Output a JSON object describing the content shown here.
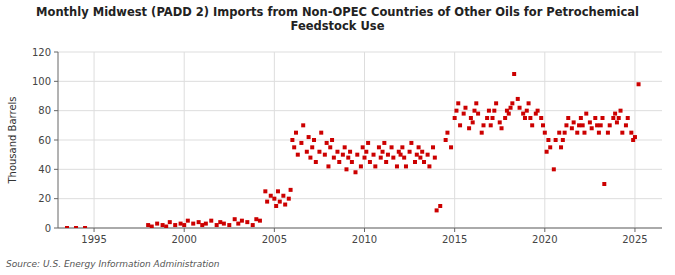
{
  "chart_data": {
    "type": "scatter",
    "title": "Monthly Midwest (PADD 2) Imports from Non-OPEC Countries of Other Oils for Petrochemical\nFeedstock Use",
    "ylabel": "Thousand Barrels",
    "source": "Source: U.S. Energy Information Administration",
    "color": "#cc0000",
    "marker": "square",
    "grid": true,
    "xlim": [
      1993.0,
      2026.5
    ],
    "ylim": [
      0,
      120
    ],
    "xticks": [
      1995,
      2000,
      2005,
      2010,
      2015,
      2020,
      2025
    ],
    "yticks": [
      0,
      20,
      40,
      60,
      80,
      100,
      120
    ],
    "x": [
      1993.5,
      1994.0,
      1994.5,
      1998.0,
      1998.2,
      1998.5,
      1998.8,
      1999.0,
      1999.2,
      1999.5,
      1999.8,
      2000.0,
      2000.2,
      2000.5,
      2000.8,
      2001.0,
      2001.2,
      2001.5,
      2001.8,
      2002.0,
      2002.2,
      2002.5,
      2002.8,
      2003.0,
      2003.2,
      2003.5,
      2003.8,
      2004.0,
      2004.2,
      2004.5,
      2004.6,
      2004.8,
      2005.0,
      2005.1,
      2005.2,
      2005.3,
      2005.5,
      2005.6,
      2005.8,
      2005.9,
      2006.0,
      2006.1,
      2006.2,
      2006.3,
      2006.5,
      2006.6,
      2006.8,
      2006.9,
      2007.0,
      2007.1,
      2007.2,
      2007.3,
      2007.5,
      2007.6,
      2007.8,
      2007.9,
      2008.0,
      2008.1,
      2008.2,
      2008.3,
      2008.5,
      2008.6,
      2008.8,
      2008.9,
      2009.0,
      2009.1,
      2009.2,
      2009.3,
      2009.5,
      2009.6,
      2009.8,
      2009.9,
      2010.0,
      2010.1,
      2010.2,
      2010.3,
      2010.5,
      2010.6,
      2010.8,
      2010.9,
      2011.0,
      2011.1,
      2011.2,
      2011.3,
      2011.5,
      2011.6,
      2011.8,
      2011.9,
      2012.0,
      2012.1,
      2012.2,
      2012.3,
      2012.5,
      2012.6,
      2012.8,
      2012.9,
      2013.0,
      2013.1,
      2013.2,
      2013.3,
      2013.5,
      2013.6,
      2013.8,
      2013.9,
      2014.0,
      2014.2,
      2014.5,
      2014.6,
      2014.8,
      2015.0,
      2015.1,
      2015.2,
      2015.3,
      2015.5,
      2015.6,
      2015.8,
      2015.9,
      2016.0,
      2016.1,
      2016.2,
      2016.3,
      2016.5,
      2016.6,
      2016.8,
      2016.9,
      2017.0,
      2017.1,
      2017.2,
      2017.3,
      2017.5,
      2017.6,
      2017.8,
      2017.9,
      2018.0,
      2018.1,
      2018.2,
      2018.3,
      2018.5,
      2018.6,
      2018.8,
      2018.9,
      2019.0,
      2019.1,
      2019.2,
      2019.3,
      2019.5,
      2019.6,
      2019.8,
      2019.9,
      2020.0,
      2020.1,
      2020.2,
      2020.3,
      2020.5,
      2020.6,
      2020.8,
      2020.9,
      2021.0,
      2021.1,
      2021.2,
      2021.3,
      2021.5,
      2021.6,
      2021.8,
      2021.9,
      2022.0,
      2022.1,
      2022.2,
      2022.3,
      2022.5,
      2022.6,
      2022.8,
      2022.9,
      2023.0,
      2023.1,
      2023.2,
      2023.3,
      2023.5,
      2023.6,
      2023.8,
      2023.9,
      2024.0,
      2024.1,
      2024.2,
      2024.3,
      2024.5,
      2024.6,
      2024.8,
      2024.9,
      2025.0,
      2025.2
    ],
    "values": [
      0,
      0,
      0,
      2,
      1,
      3,
      2,
      1,
      4,
      2,
      3,
      2,
      5,
      3,
      4,
      2,
      3,
      5,
      2,
      4,
      3,
      2,
      6,
      3,
      5,
      4,
      2,
      6,
      5,
      25,
      18,
      22,
      20,
      15,
      25,
      18,
      22,
      16,
      20,
      26,
      60,
      55,
      65,
      50,
      58,
      70,
      52,
      62,
      48,
      55,
      60,
      45,
      52,
      65,
      50,
      58,
      42,
      55,
      60,
      48,
      52,
      45,
      50,
      55,
      40,
      48,
      52,
      45,
      38,
      50,
      42,
      55,
      48,
      52,
      58,
      45,
      50,
      42,
      55,
      48,
      52,
      58,
      45,
      50,
      55,
      48,
      42,
      52,
      50,
      55,
      48,
      42,
      52,
      58,
      45,
      50,
      55,
      48,
      52,
      45,
      50,
      42,
      55,
      48,
      12,
      15,
      60,
      65,
      55,
      75,
      80,
      85,
      70,
      78,
      82,
      68,
      75,
      72,
      80,
      85,
      78,
      65,
      70,
      75,
      80,
      70,
      75,
      80,
      85,
      72,
      68,
      75,
      80,
      78,
      82,
      85,
      105,
      88,
      82,
      78,
      75,
      80,
      85,
      75,
      70,
      78,
      80,
      75,
      70,
      65,
      52,
      60,
      55,
      40,
      60,
      65,
      55,
      60,
      65,
      70,
      75,
      68,
      72,
      65,
      70,
      75,
      70,
      65,
      78,
      72,
      68,
      75,
      70,
      65,
      70,
      75,
      30,
      65,
      70,
      75,
      78,
      72,
      75,
      80,
      65,
      70,
      75,
      65,
      60,
      62,
      98
    ]
  }
}
